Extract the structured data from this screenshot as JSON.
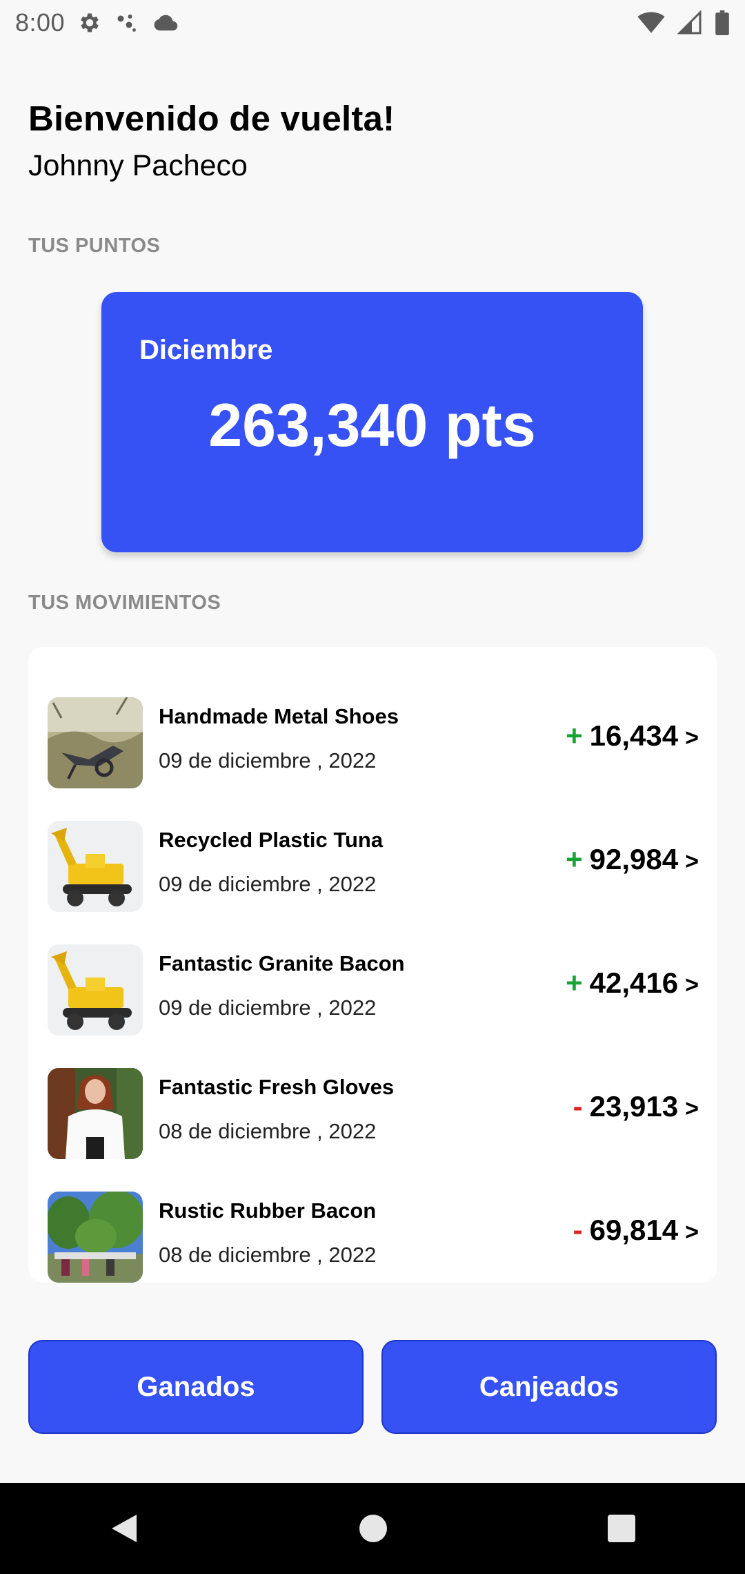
{
  "status_bar": {
    "time": "8:00",
    "icons_left": [
      "gear-icon",
      "assistant-dots-icon",
      "cloud-icon"
    ],
    "icons_right": [
      "wifi-icon",
      "signal-icon",
      "battery-icon"
    ]
  },
  "header": {
    "welcome": "Bienvenido de vuelta!",
    "user_name": "Johnny Pacheco"
  },
  "points_section": {
    "label": "TUS PUNTOS",
    "month": "Diciembre",
    "value": "263,340 pts"
  },
  "movements_section": {
    "label": "TUS MOVIMIENTOS",
    "items": [
      {
        "title": "Handmade Metal Shoes",
        "date": "09 de diciembre , 2022",
        "sign": "+",
        "amount": "16,434",
        "chevron": ">"
      },
      {
        "title": "Recycled Plastic Tuna",
        "date": "09 de diciembre , 2022",
        "sign": "+",
        "amount": "92,984",
        "chevron": ">"
      },
      {
        "title": "Fantastic Granite Bacon",
        "date": "09 de diciembre , 2022",
        "sign": "+",
        "amount": "42,416",
        "chevron": ">"
      },
      {
        "title": "Fantastic Fresh Gloves",
        "date": "08 de diciembre , 2022",
        "sign": "-",
        "amount": "23,913",
        "chevron": ">"
      },
      {
        "title": "Rustic Rubber Bacon",
        "date": "08 de diciembre , 2022",
        "sign": "-",
        "amount": "69,814",
        "chevron": ">"
      }
    ]
  },
  "buttons": {
    "earned": "Ganados",
    "redeemed": "Canjeados"
  },
  "colors": {
    "primary": "#3651f4",
    "positive": "#19a336",
    "negative": "#e0201e",
    "background": "#f8f8f8"
  },
  "nav_bar": {
    "icons": [
      "back-triangle-icon",
      "home-circle-icon",
      "recents-square-icon"
    ]
  }
}
